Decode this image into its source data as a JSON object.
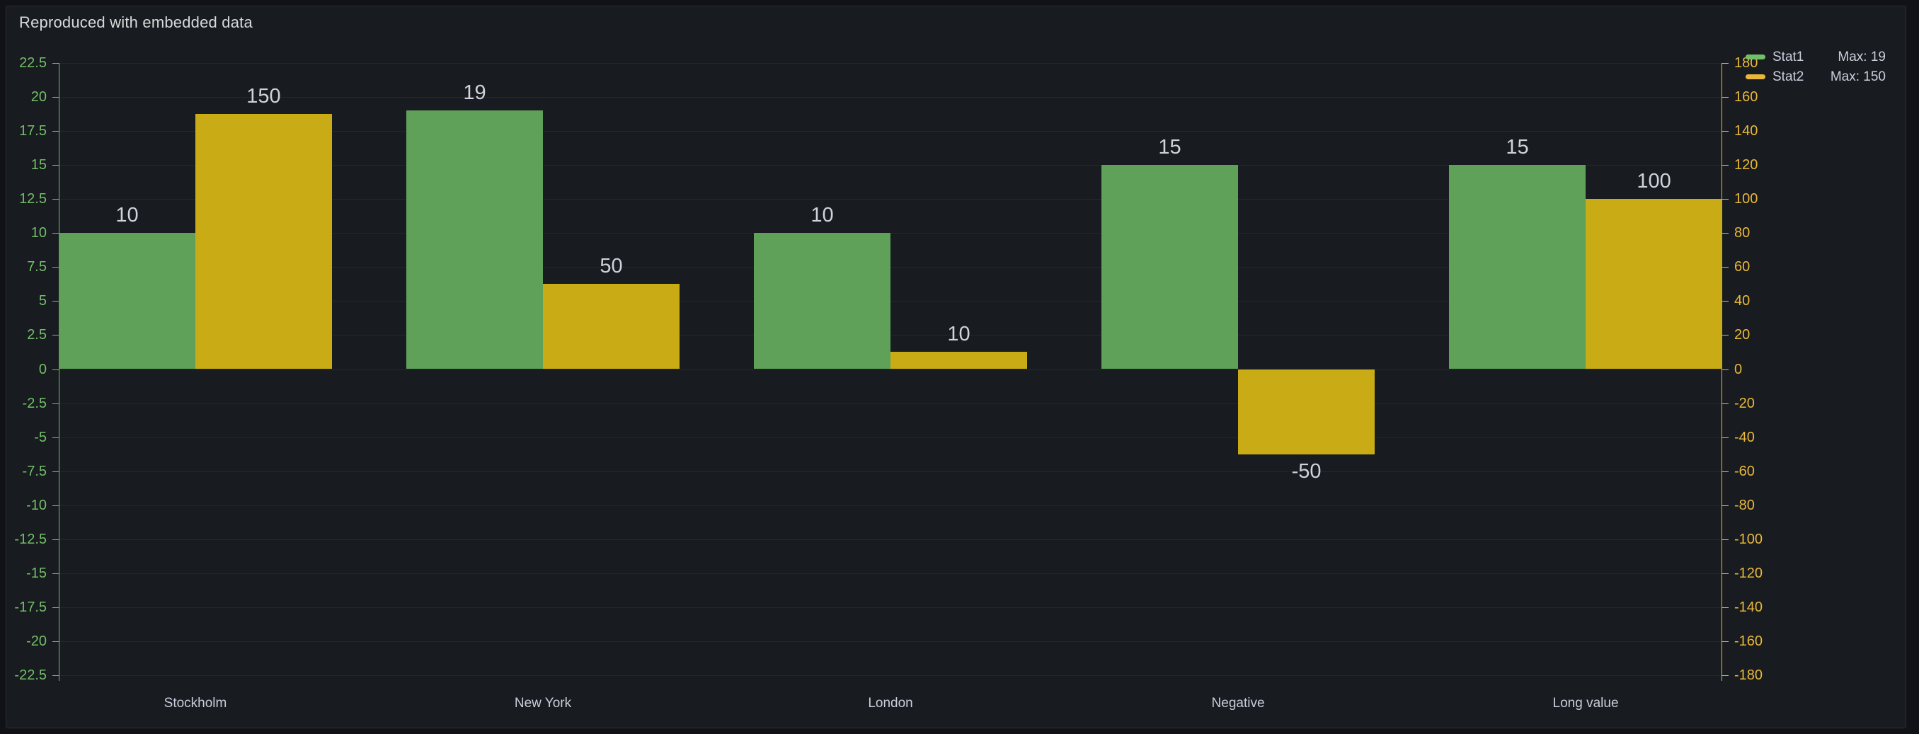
{
  "panel": {
    "title": "Reproduced with embedded data"
  },
  "colors": {
    "page_bg": "#111217",
    "panel_bg": "#181b1f",
    "panel_border": "#2a2d33",
    "title_text": "#d8d9da",
    "value_label_text": "#d0d2dc",
    "x_label_text": "#ccccdc",
    "legend_text": "#ccccdc",
    "grid": "rgba(204,204,220,0.07)"
  },
  "chart_data": {
    "type": "bar",
    "title": "Reproduced with embedded data",
    "categories": [
      "Stockholm",
      "New York",
      "London",
      "Negative",
      "Long value"
    ],
    "series": [
      {
        "name": "Stat1",
        "axis": "left",
        "color": "#73BF69",
        "bar_fill": "#5fa159",
        "values": [
          10,
          19,
          10,
          15,
          15
        ],
        "legend_max": "Max: 19"
      },
      {
        "name": "Stat2",
        "axis": "right",
        "color": "#EAB839",
        "bar_fill": "#c9ac15",
        "values": [
          150,
          50,
          10,
          -50,
          100
        ],
        "legend_max": "Max: 150"
      }
    ],
    "value_labels": [
      [
        "10",
        "19",
        "10",
        "15",
        "15"
      ],
      [
        "150",
        "50",
        "10",
        "-50",
        "100"
      ]
    ],
    "left_axis": {
      "min": -22.5,
      "max": 22.5,
      "step": 2.5,
      "color": "#73BF69",
      "ticks": [
        "22.5",
        "20",
        "17.5",
        "15",
        "12.5",
        "10",
        "7.5",
        "5",
        "2.5",
        "0",
        "-2.5",
        "-5",
        "-7.5",
        "-10",
        "-12.5",
        "-15",
        "-17.5",
        "-20",
        "-22.5"
      ]
    },
    "right_axis": {
      "min": -180,
      "max": 180,
      "step": 20,
      "color": "#EAB839",
      "ticks": [
        "180",
        "160",
        "140",
        "120",
        "100",
        "80",
        "60",
        "40",
        "20",
        "0",
        "-20",
        "-40",
        "-60",
        "-80",
        "-100",
        "-120",
        "-140",
        "-160",
        "-180"
      ]
    },
    "grid": "on",
    "legend_position": "top-right",
    "layout": {
      "bar_width_pct": 8.213,
      "group_gap_pct": 4.468
    }
  }
}
